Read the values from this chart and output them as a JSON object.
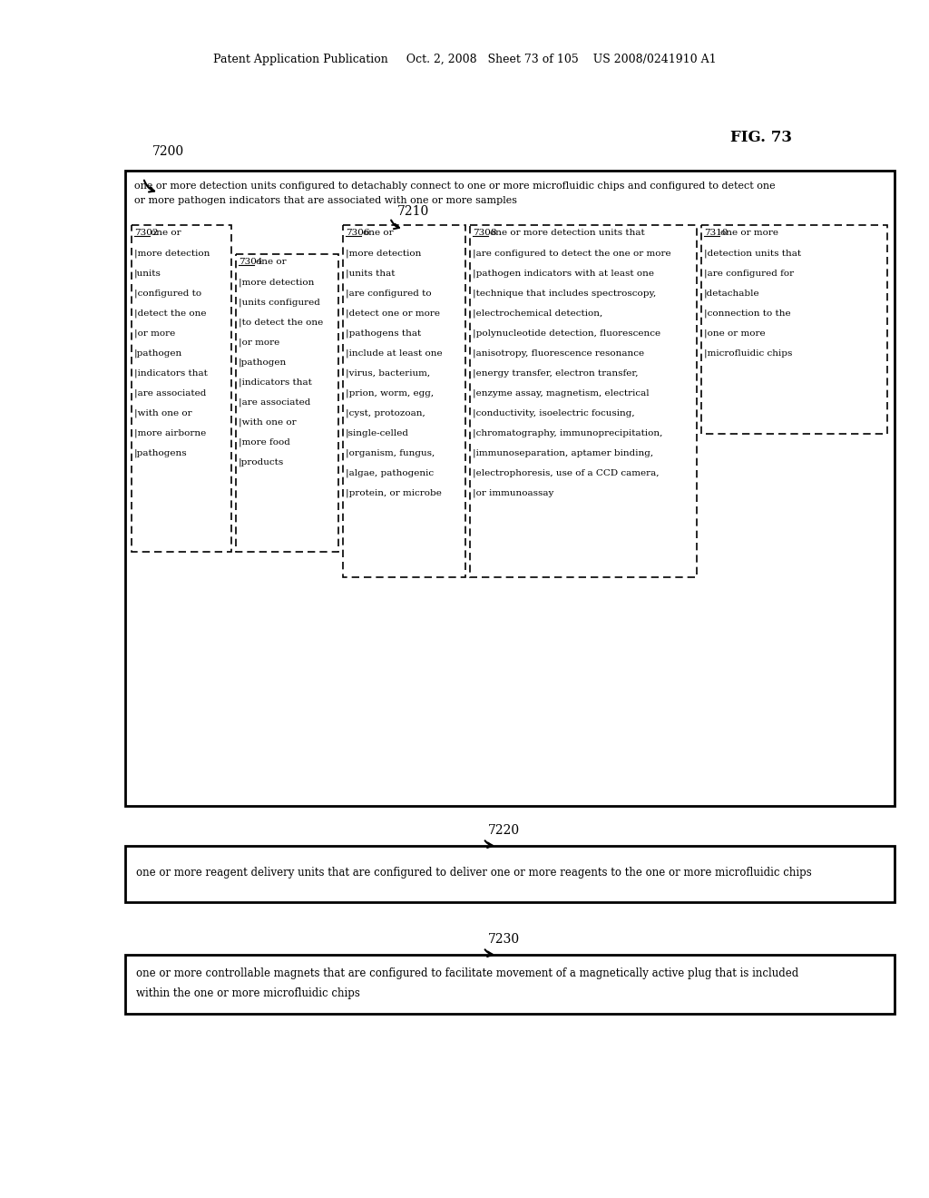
{
  "bg_color": "#ffffff",
  "header": "Patent Application Publication     Oct. 2, 2008   Sheet 73 of 105    US 2008/0241910 A1",
  "fig_label": "FIG. 73",
  "label_7200": "7200",
  "label_7210": "7210",
  "label_7220": "7220",
  "label_7230": "7230",
  "main_desc1": "one or more detection units configured to detachably connect to one or more microfluidic chips and configured to detect one",
  "main_desc2": "or more pathogen indicators that are associated with one or more samples",
  "box7302_text": [
    "7302  one or",
    "|more detection",
    "|units",
    "|configured to",
    "|detect the one",
    "|or more",
    "|pathogen",
    "|indicators that",
    "|are associated",
    "|with one or",
    "|more airborne",
    "|pathogens"
  ],
  "box7304_text": [
    "7304  one or",
    "|more detection",
    "|units configured",
    "|to detect the one",
    "|or more",
    "|pathogen",
    "|indicators that",
    "|are associated",
    "|with one or",
    "|more food",
    "|products"
  ],
  "box7306_text": [
    "7306  one or",
    "|more detection",
    "|units that",
    "|are configured to",
    "|detect one or more",
    "|pathogens that",
    "|include at least one",
    "|virus, bacterium,",
    "|prion, worm, egg,",
    "|cyst, protozoan,",
    "|single-celled",
    "|organism, fungus,",
    "|algae, pathogenic",
    "|protein, or microbe"
  ],
  "box7308_text": [
    "7308  one or more detection units that",
    "|are configured to detect the one or more",
    "|pathogen indicators with at least one",
    "|technique that includes spectroscopy,",
    "|electrochemical detection,",
    "|polynucleotide detection, fluorescence",
    "|anisotropy, fluorescence resonance",
    "|energy transfer, electron transfer,",
    "|enzyme assay, magnetism, electrical",
    "|conductivity, isoelectric focusing,",
    "|chromatography, immunoprecipitation,",
    "|immunoseparation, aptamer binding,",
    "|electrophoresis, use of a CCD camera,",
    "|or immunoassay"
  ],
  "box7310_text": [
    "7310  one or more",
    "|detection units that",
    "|are configured for",
    "|detachable",
    "|connection to the",
    "|one or more",
    "|microfluidic chips"
  ],
  "box7220_text": "one or more reagent delivery units that are configured to deliver one or more reagents to the one or more microfluidic chips",
  "box7230_text1": "one or more controllable magnets that are configured to facilitate movement of a magnetically active plug that is included",
  "box7230_text2": "within the one or more microfluidic chips"
}
